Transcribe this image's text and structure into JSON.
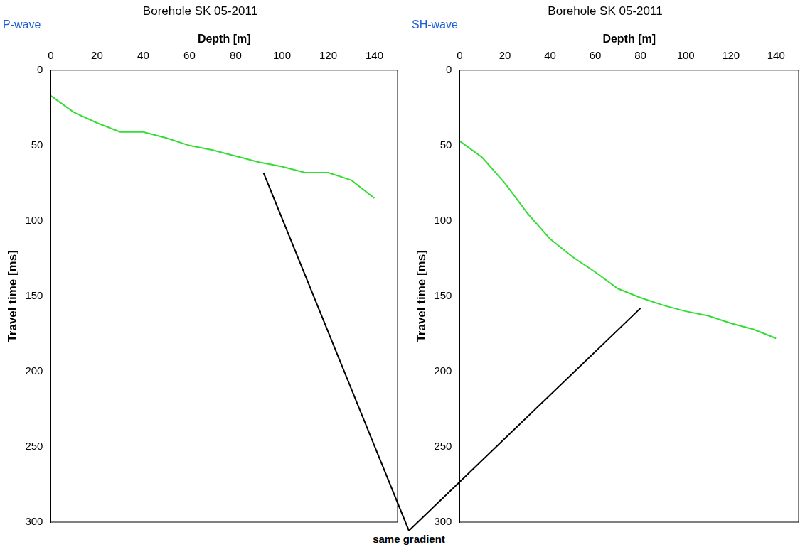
{
  "chart_data": [
    {
      "type": "line",
      "title": "Borehole SK 05-2011",
      "subtitle": "P-wave",
      "x_label": "Depth [m]",
      "y_label": "Travel time [ms]",
      "xlim": [
        0,
        150
      ],
      "xticks": [
        0,
        20,
        40,
        60,
        80,
        100,
        120,
        140
      ],
      "ylim": [
        0,
        300
      ],
      "yticks": [
        0,
        50,
        100,
        150,
        200,
        250,
        300
      ],
      "grid": false,
      "series": [
        {
          "color": "#33dd33",
          "x": [
            0,
            10,
            20,
            30,
            40,
            50,
            60,
            70,
            80,
            90,
            100,
            110,
            120,
            130,
            140
          ],
          "values": [
            17,
            28,
            35,
            41,
            41,
            45,
            50,
            53,
            57,
            61,
            64,
            68,
            68,
            73,
            85
          ]
        }
      ]
    },
    {
      "type": "line",
      "title": "Borehole SK 05-2011",
      "subtitle": "SH-wave",
      "x_label": "Depth [m]",
      "y_label": "Travel time [ms]",
      "xlim": [
        0,
        150
      ],
      "xticks": [
        0,
        20,
        40,
        60,
        80,
        100,
        120,
        140
      ],
      "ylim": [
        0,
        300
      ],
      "yticks": [
        0,
        50,
        100,
        150,
        200,
        250,
        300
      ],
      "grid": false,
      "series": [
        {
          "color": "#33dd33",
          "x": [
            0,
            10,
            20,
            30,
            40,
            50,
            60,
            70,
            80,
            90,
            100,
            110,
            120,
            130,
            140
          ],
          "values": [
            47,
            58,
            75,
            95,
            112,
            124,
            134,
            145,
            151,
            156,
            160,
            163,
            168,
            172,
            178
          ]
        }
      ]
    }
  ],
  "annotation": {
    "text": "same gradient",
    "targets": [
      {
        "chart": 0,
        "x": 92,
        "y": 68
      },
      {
        "chart": 1,
        "x": 80,
        "y": 158
      }
    ]
  }
}
